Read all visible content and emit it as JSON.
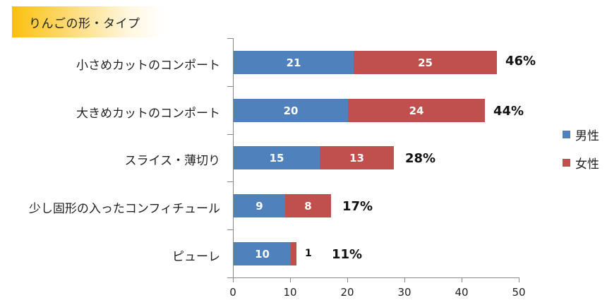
{
  "title": "りんごの形・タイプ",
  "chart_data": {
    "type": "bar",
    "orientation": "horizontal",
    "stacked": true,
    "title": "りんごの形・タイプ",
    "categories": [
      "小さめカットのコンポート",
      "大きめカットのコンポート",
      "スライス・薄切り",
      "少し固形の入ったコンフィチュール",
      "ピューレ"
    ],
    "series": [
      {
        "name": "男性",
        "color": "#4f81bd",
        "values": [
          21,
          20,
          15,
          9,
          10
        ]
      },
      {
        "name": "女性",
        "color": "#c0504d",
        "values": [
          25,
          24,
          13,
          8,
          1
        ]
      }
    ],
    "totals": [
      "46%",
      "44%",
      "28%",
      "17%",
      "11%"
    ],
    "xlim": [
      0,
      50
    ],
    "xticks": [
      "0",
      "10",
      "20",
      "30",
      "40",
      "50"
    ],
    "legend_position": "right",
    "grid": false
  },
  "legend": [
    {
      "label": "男性",
      "color": "#4f81bd"
    },
    {
      "label": "女性",
      "color": "#c0504d"
    }
  ]
}
